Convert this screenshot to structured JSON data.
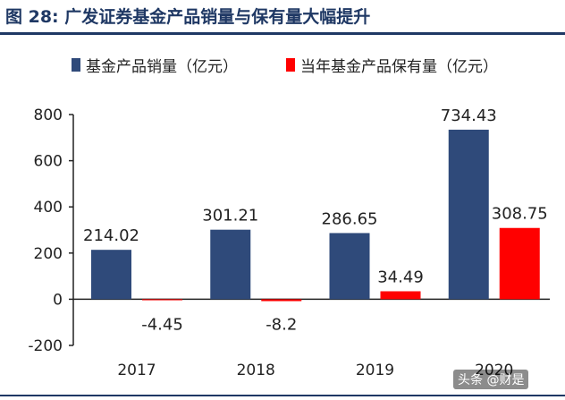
{
  "figure_title": "图 28:  广发证券基金产品销量与保有量大幅提升",
  "watermark": "头条 @财是",
  "colors": {
    "title": "#1f3864",
    "series_0": "#2f4a7a",
    "series_1": "#ff0000"
  },
  "chart_data": {
    "type": "bar",
    "categories": [
      "2017",
      "2018",
      "2019",
      "2020"
    ],
    "series": [
      {
        "name": "基金产品销量（亿元）",
        "values": [
          214.02,
          301.21,
          286.65,
          734.43
        ]
      },
      {
        "name": "当年基金产品保有量（亿元）",
        "values": [
          -4.45,
          -8.2,
          34.49,
          308.75
        ]
      }
    ],
    "data_labels": [
      [
        "214.02",
        "301.21",
        "286.65",
        "734.43"
      ],
      [
        "-4.45",
        "-8.2",
        "34.49",
        "308.75"
      ]
    ],
    "ylim": [
      -200,
      800
    ],
    "yticks": [
      -200,
      0,
      200,
      400,
      600,
      800
    ],
    "ytick_labels": [
      "-200",
      "0",
      "200",
      "400",
      "600",
      "800"
    ],
    "xlabel": "",
    "ylabel": "",
    "grid": false,
    "legend_position": "top"
  }
}
